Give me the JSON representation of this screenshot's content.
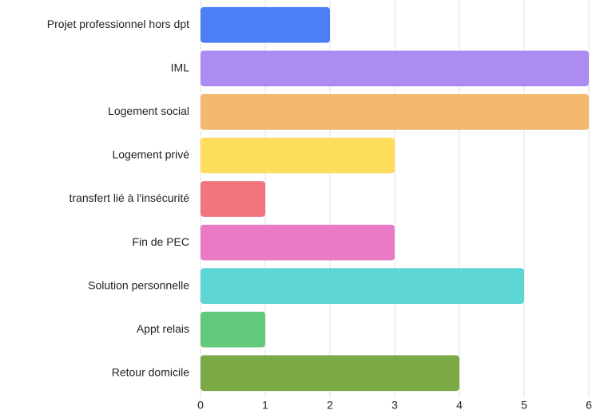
{
  "chart_data": {
    "type": "hbar",
    "categories": [
      "Projet professionnel hors dpt",
      "IML",
      "Logement social",
      "Logement privé",
      "transfert lié à l'insécurité",
      "Fin de PEC",
      "Solution personnelle",
      "Appt relais",
      "Retour domicile"
    ],
    "values": [
      2,
      6,
      6,
      3,
      1,
      3,
      5,
      1,
      4
    ],
    "colors": [
      "#4b7ff5",
      "#ad8cf2",
      "#f3b96e",
      "#ffdd5c",
      "#f0757d",
      "#e87ac6",
      "#5dd5d5",
      "#63c97c",
      "#7ba946"
    ],
    "xlim": [
      0,
      6
    ],
    "xticks": [
      0,
      1,
      2,
      3,
      4,
      5,
      6
    ],
    "grid": true
  }
}
